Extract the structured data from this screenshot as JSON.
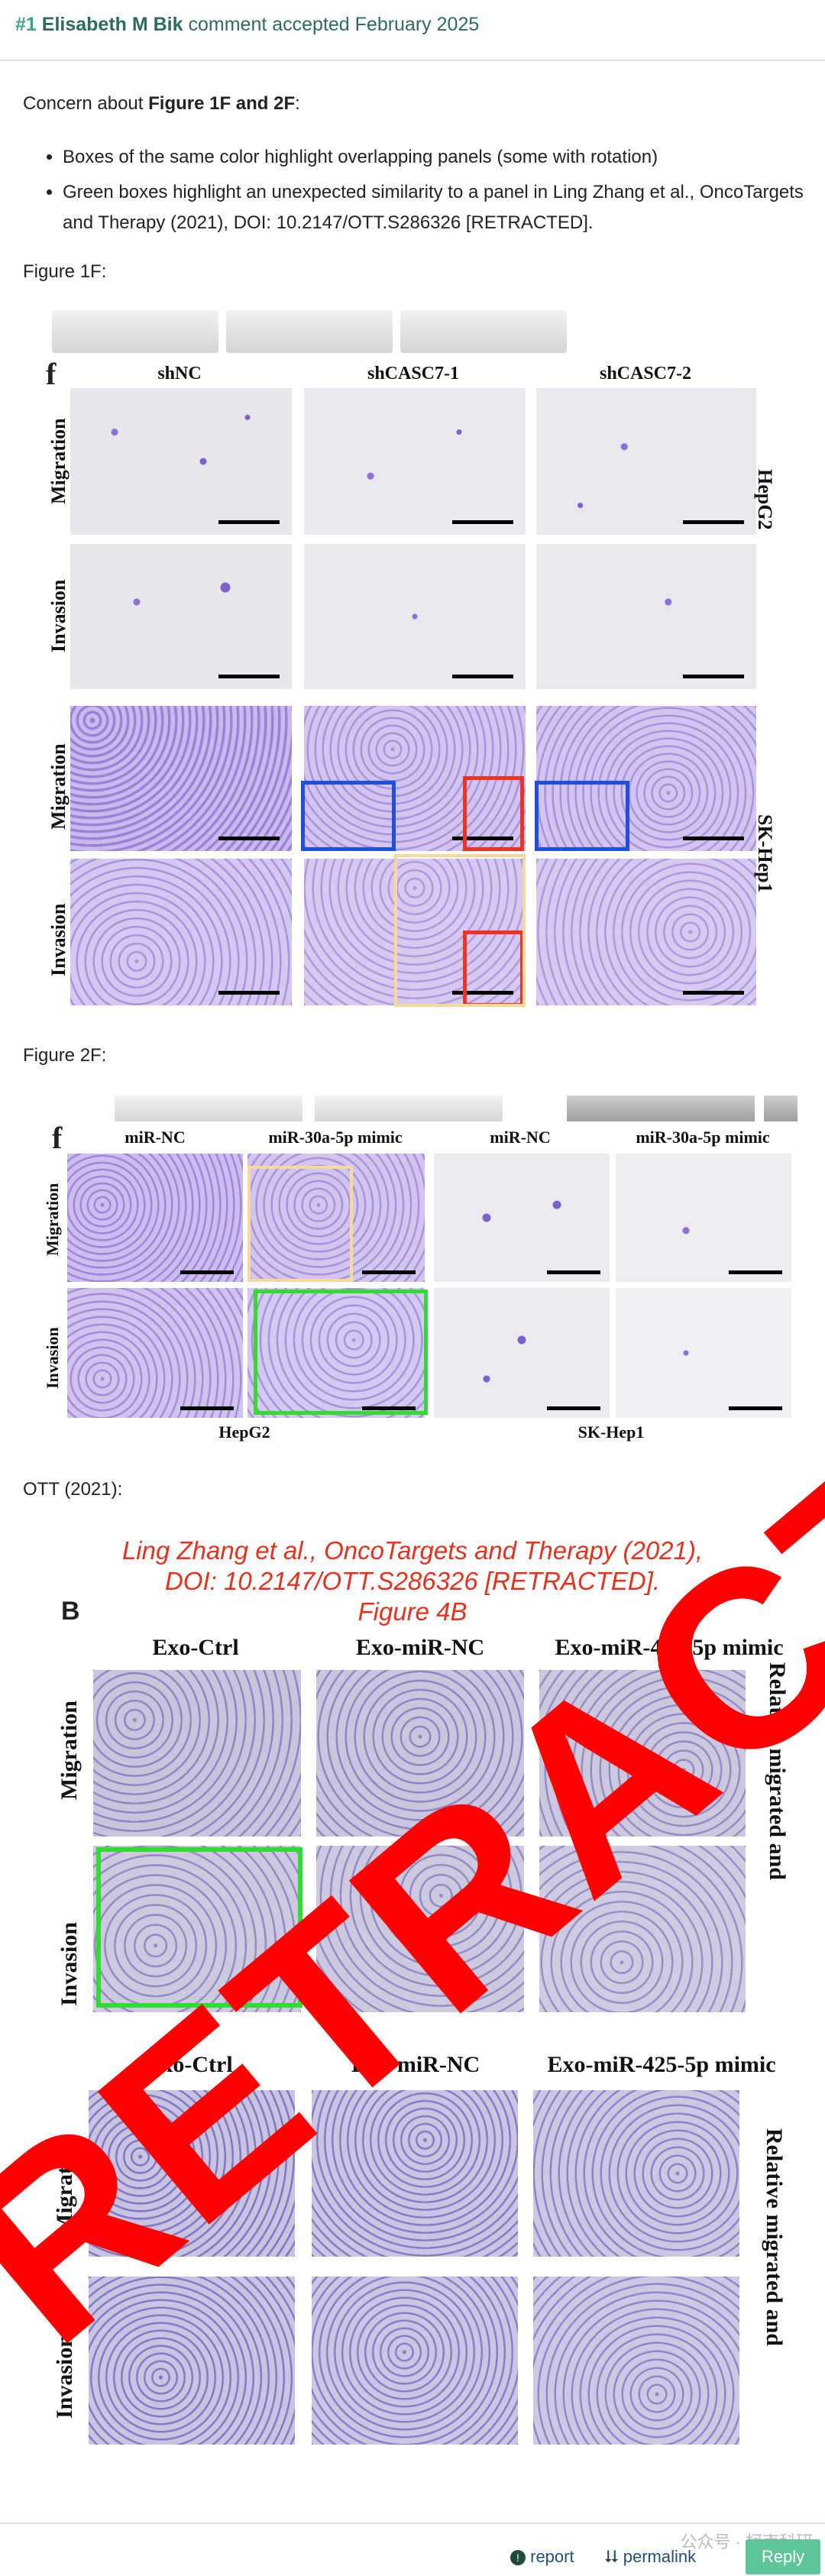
{
  "comment": {
    "number": "#1",
    "author": "Elisabeth M Bik",
    "status": "comment accepted February 2025"
  },
  "concern": {
    "prefix": "Concern about ",
    "figures": "Figure 1F and 2F",
    "suffix": ":"
  },
  "bullets": [
    "Boxes of the same color highlight overlapping panels (some with rotation)",
    "Green boxes highlight an unexpected similarity to a panel in Ling Zhang et al., OncoTargets and Therapy (2021), DOI: 10.2147/OTT.S286326 [RETRACTED]."
  ],
  "fig1": {
    "heading": "Figure 1F:",
    "letter": "f",
    "columns": [
      "shNC",
      "shCASC7-1",
      "shCASC7-2"
    ],
    "rows": [
      "Migration",
      "Invasion",
      "Migration",
      "Invasion"
    ],
    "cell_lines": [
      "HepG2",
      "SK-Hep1"
    ]
  },
  "fig2": {
    "heading": "Figure 2F:",
    "letter": "f",
    "columns": [
      "miR-NC",
      "miR-30a-5p mimic",
      "miR-NC",
      "miR-30a-5p mimic"
    ],
    "rows": [
      "Migration",
      "Invasion"
    ],
    "cell_lines": [
      "HepG2",
      "SK-Hep1"
    ]
  },
  "ott": {
    "heading": "OTT (2021):",
    "caption_lines": [
      "Ling Zhang et al., OncoTargets and Therapy (2021),",
      "DOI: 10.2147/OTT.S286326 [RETRACTED].",
      "Figure 4B"
    ],
    "letter": "B",
    "columns": [
      "Exo-Ctrl",
      "Exo-miR-NC",
      "Exo-miR-425-5p mimic"
    ],
    "rows": [
      "Migration",
      "Invasion"
    ],
    "side_label": "Relative migrated and",
    "stamp": "RETRACTED"
  },
  "footer": {
    "report": "report",
    "permalink": "permalink",
    "reply": "Reply",
    "watermark": "公众号 · 柯南科研"
  },
  "colors": {
    "accent": "#3aa57a",
    "blue_box": "#1f4fe0",
    "red_box": "#ee3322",
    "yellow_box": "#f7d9a0",
    "green_box": "#2fdc2f",
    "stamp_red": "#ff0000"
  }
}
